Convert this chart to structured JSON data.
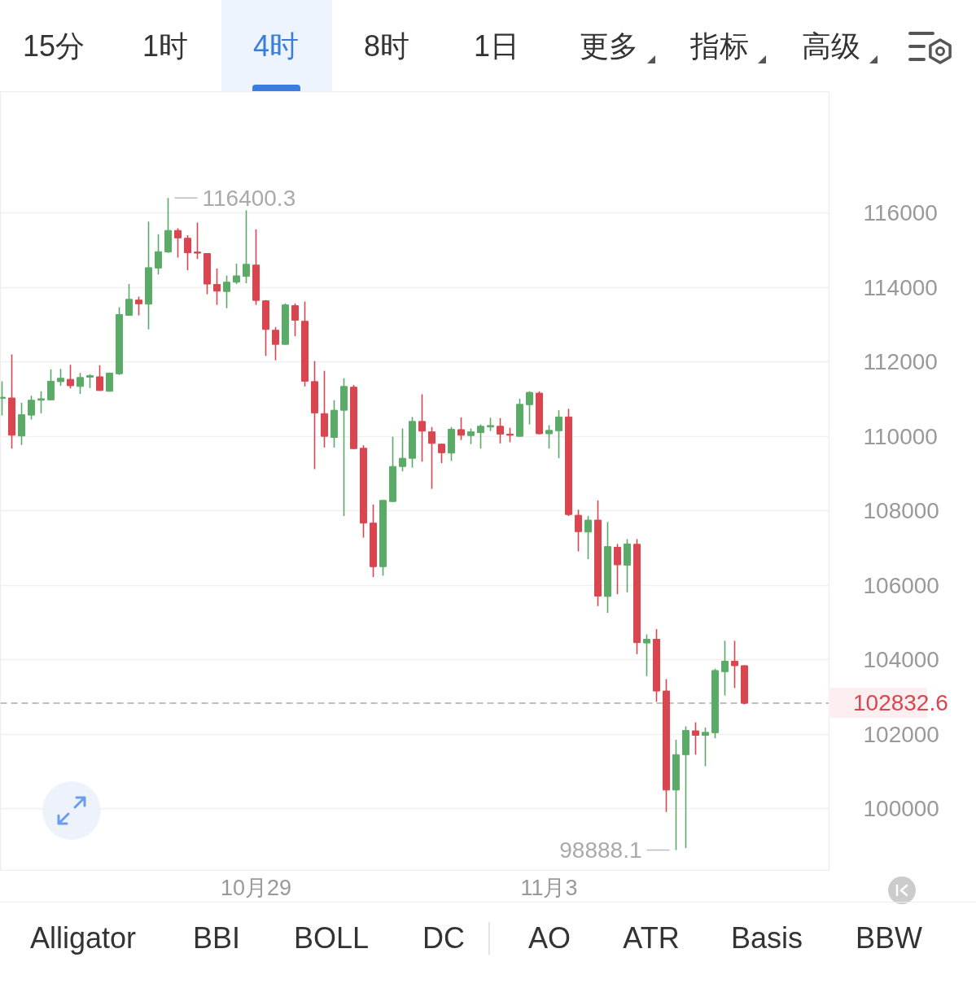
{
  "chart_data": {
    "type": "candlestick",
    "categories": [
      null,
      null,
      null,
      null,
      null,
      null,
      null,
      null,
      null,
      null,
      null,
      null,
      null,
      null,
      null,
      null,
      null,
      null,
      null,
      null,
      null,
      null,
      null,
      null,
      null,
      null,
      "10月29",
      null,
      null,
      null,
      null,
      null,
      null,
      null,
      null,
      null,
      null,
      null,
      null,
      null,
      null,
      null,
      null,
      null,
      null,
      null,
      null,
      null,
      null,
      null,
      null,
      null,
      null,
      null,
      null,
      null,
      "11月3",
      null,
      null,
      null,
      null,
      null,
      null,
      null,
      null,
      null,
      null,
      null,
      null,
      null,
      null,
      null,
      null,
      null,
      null,
      null,
      null
    ],
    "ohlc": [
      [
        111020,
        111480,
        110560,
        111050
      ],
      [
        111030,
        112200,
        109670,
        110030
      ],
      [
        110010,
        110900,
        109770,
        110580
      ],
      [
        110570,
        111090,
        110450,
        110970
      ],
      [
        110970,
        111210,
        110620,
        111010
      ],
      [
        110980,
        111800,
        110970,
        111480
      ],
      [
        111470,
        111810,
        111360,
        111560
      ],
      [
        111530,
        111920,
        111290,
        111360
      ],
      [
        111340,
        111700,
        111140,
        111580
      ],
      [
        111590,
        111670,
        111300,
        111630
      ],
      [
        111600,
        111910,
        111220,
        111230
      ],
      [
        111210,
        111710,
        111200,
        111700
      ],
      [
        111680,
        113470,
        111650,
        113270
      ],
      [
        113250,
        114090,
        113240,
        113680
      ],
      [
        113660,
        113750,
        113250,
        113560
      ],
      [
        113550,
        115770,
        112870,
        114530
      ],
      [
        114520,
        115430,
        114350,
        114960
      ],
      [
        114950,
        116400.3,
        114930,
        115530
      ],
      [
        115530,
        115590,
        114800,
        115330
      ],
      [
        115320,
        115400,
        114460,
        114930
      ],
      [
        114950,
        115740,
        114760,
        114920
      ],
      [
        114910,
        114920,
        113820,
        114090
      ],
      [
        114080,
        114510,
        113530,
        113900
      ],
      [
        113890,
        114320,
        113440,
        114140
      ],
      [
        114140,
        114640,
        114090,
        114310
      ],
      [
        114300,
        116070,
        114110,
        114620
      ],
      [
        114600,
        115560,
        113530,
        113650
      ],
      [
        113640,
        113660,
        112160,
        112870
      ],
      [
        112850,
        112930,
        112040,
        112470
      ],
      [
        112470,
        113570,
        112460,
        113530
      ],
      [
        113510,
        113570,
        112690,
        113120
      ],
      [
        113090,
        113620,
        111340,
        111480
      ],
      [
        111470,
        112020,
        109120,
        110630
      ],
      [
        110610,
        111760,
        109700,
        110000
      ],
      [
        109970,
        110970,
        109700,
        110700
      ],
      [
        110700,
        111560,
        107860,
        111340
      ],
      [
        111320,
        111380,
        109660,
        109670
      ],
      [
        109680,
        109760,
        107280,
        107670
      ],
      [
        107670,
        108170,
        106220,
        106500
      ],
      [
        106500,
        108290,
        106260,
        108280
      ],
      [
        108250,
        109990,
        108230,
        109190
      ],
      [
        109190,
        110210,
        109060,
        109410
      ],
      [
        109410,
        110520,
        109160,
        110400
      ],
      [
        110400,
        111130,
        109320,
        110140
      ],
      [
        110120,
        110250,
        108590,
        109810
      ],
      [
        109790,
        109800,
        109280,
        109560
      ],
      [
        109550,
        110250,
        109340,
        110190
      ],
      [
        110180,
        110510,
        109900,
        110030
      ],
      [
        110020,
        110210,
        109790,
        110120
      ],
      [
        110100,
        110320,
        109670,
        110270
      ],
      [
        110250,
        110500,
        110140,
        110290
      ],
      [
        110270,
        110490,
        109810,
        110060
      ],
      [
        110060,
        110230,
        109840,
        110030
      ],
      [
        110000,
        111010,
        109990,
        110860
      ],
      [
        110850,
        111210,
        110320,
        111180
      ],
      [
        111160,
        111210,
        110050,
        110070
      ],
      [
        110070,
        110300,
        109670,
        110160
      ],
      [
        110150,
        110700,
        109410,
        110520
      ],
      [
        110520,
        110740,
        107860,
        107900
      ],
      [
        107880,
        108030,
        106910,
        107440
      ],
      [
        107430,
        107860,
        106700,
        107750
      ],
      [
        107750,
        108280,
        105440,
        105710
      ],
      [
        105700,
        107700,
        105260,
        107040
      ],
      [
        107020,
        107110,
        105760,
        106550
      ],
      [
        106540,
        107240,
        105810,
        107110
      ],
      [
        107100,
        107240,
        104150,
        104460
      ],
      [
        104450,
        104680,
        103560,
        104550
      ],
      [
        104550,
        104820,
        102870,
        103160
      ],
      [
        103160,
        103480,
        99910,
        100500
      ],
      [
        100500,
        101850,
        98888.1,
        101450
      ],
      [
        101450,
        102210,
        98940,
        102100
      ],
      [
        102090,
        102320,
        101450,
        101970
      ],
      [
        101970,
        102180,
        101140,
        102050
      ],
      [
        102040,
        103760,
        101890,
        103710
      ],
      [
        103680,
        104510,
        103040,
        103960
      ],
      [
        103960,
        104510,
        103240,
        103840
      ],
      [
        103840,
        103850,
        102800,
        102832.6
      ]
    ],
    "colors": [
      "#5aab67",
      "#d9464f",
      "#5aab67",
      "#5aab67",
      "#5aab67",
      "#5aab67",
      "#5aab67",
      "#d9464f",
      "#5aab67",
      "#5aab67",
      "#d9464f",
      "#5aab67",
      "#5aab67",
      "#5aab67",
      "#d9464f",
      "#5aab67",
      "#5aab67",
      "#5aab67",
      "#d9464f",
      "#d9464f",
      "#d9464f",
      "#d9464f",
      "#d9464f",
      "#5aab67",
      "#5aab67",
      "#5aab67",
      "#d9464f",
      "#d9464f",
      "#d9464f",
      "#5aab67",
      "#d9464f",
      "#d9464f",
      "#d9464f",
      "#d9464f",
      "#5aab67",
      "#5aab67",
      "#d9464f",
      "#d9464f",
      "#d9464f",
      "#5aab67",
      "#5aab67",
      "#5aab67",
      "#5aab67",
      "#d9464f",
      "#d9464f",
      "#d9464f",
      "#5aab67",
      "#d9464f",
      "#5aab67",
      "#5aab67",
      "#5aab67",
      "#d9464f",
      "#d9464f",
      "#5aab67",
      "#5aab67",
      "#d9464f",
      "#5aab67",
      "#5aab67",
      "#d9464f",
      "#d9464f",
      "#5aab67",
      "#d9464f",
      "#5aab67",
      "#d9464f",
      "#5aab67",
      "#d9464f",
      "#5aab67",
      "#d9464f",
      "#d9464f",
      "#5aab67",
      "#5aab67",
      "#d9464f",
      "#5aab67",
      "#5aab67",
      "#5aab67",
      "#d9464f",
      "#d9464f"
    ],
    "ylim": [
      98320,
      119260
    ],
    "yticks": [
      100000,
      102000,
      104000,
      106000,
      108000,
      110000,
      112000,
      114000,
      116000
    ],
    "grid": "y",
    "ref_lines": [
      {
        "axis": "y",
        "value": 102832.6,
        "label": "102832.6",
        "color": "#aaaaaa",
        "line_style": "dashed"
      }
    ],
    "annotations": [
      "116400.3",
      "98888.1",
      "15分",
      "1时",
      "4时",
      "8时",
      "1日",
      "更多",
      "指标",
      "高级",
      "Alligator",
      "BBI",
      "BOLL",
      "DC",
      "AO",
      "ATR",
      "Basis",
      "BBW"
    ]
  }
}
